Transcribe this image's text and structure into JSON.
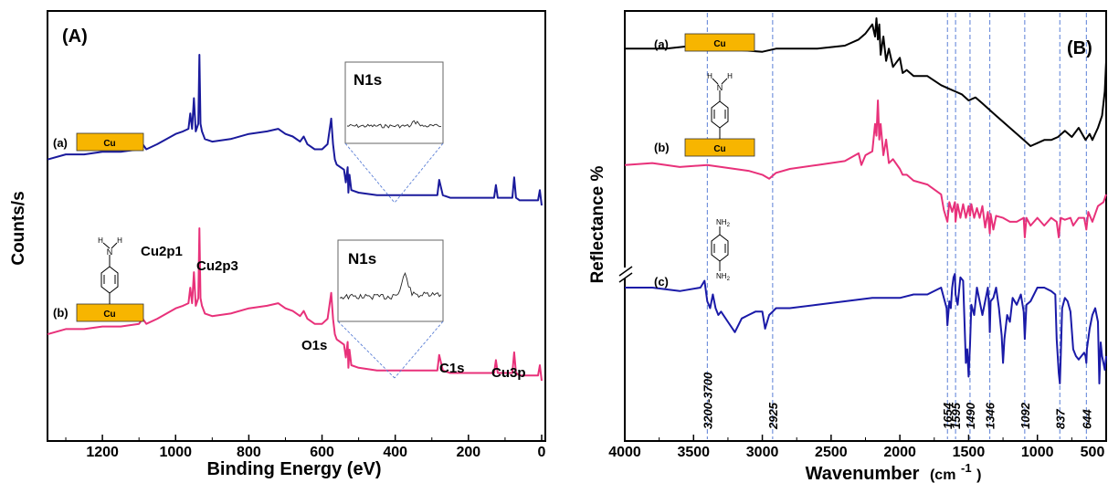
{
  "colors": {
    "a": "#1a1a9c",
    "b": "#e8317a",
    "c": "#1a1aa8",
    "black": "#000000",
    "substrate": "#f7b500",
    "guide": "#5b7fd6"
  },
  "chart_data": [
    {
      "type": "line",
      "panel": "(A)",
      "xlabel": "Binding Energy (eV)",
      "ylabel": "Counts/s",
      "xlim": [
        1350,
        -10
      ],
      "xticks": [
        1200,
        1000,
        800,
        600,
        400,
        200,
        0
      ],
      "yticks_shown": false,
      "series": [
        {
          "name": "(a)",
          "substrate_label": "Cu",
          "color": "#1a1a9c",
          "x": [
            1350,
            1300,
            1250,
            1200,
            1150,
            1100,
            1090,
            1080,
            1050,
            1000,
            980,
            965,
            960,
            955,
            950,
            945,
            938,
            935,
            932,
            928,
            920,
            900,
            850,
            800,
            750,
            720,
            700,
            680,
            660,
            650,
            640,
            620,
            600,
            585,
            575,
            570,
            565,
            560,
            540,
            535,
            530,
            528,
            525,
            520,
            500,
            450,
            400,
            350,
            300,
            285,
            280,
            270,
            250,
            200,
            150,
            130,
            125,
            120,
            100,
            80,
            75,
            70,
            60,
            50,
            40,
            20,
            10,
            5,
            0
          ],
          "y": [
            0.56,
            0.58,
            0.58,
            0.59,
            0.59,
            0.6,
            0.62,
            0.6,
            0.62,
            0.66,
            0.67,
            0.68,
            0.74,
            0.68,
            0.8,
            0.67,
            0.7,
            0.97,
            0.7,
            0.67,
            0.64,
            0.63,
            0.64,
            0.66,
            0.67,
            0.68,
            0.66,
            0.65,
            0.63,
            0.65,
            0.62,
            0.6,
            0.6,
            0.62,
            0.72,
            0.62,
            0.56,
            0.54,
            0.52,
            0.47,
            0.53,
            0.43,
            0.5,
            0.44,
            0.43,
            0.42,
            0.42,
            0.42,
            0.42,
            0.42,
            0.48,
            0.42,
            0.41,
            0.41,
            0.41,
            0.41,
            0.46,
            0.41,
            0.41,
            0.41,
            0.49,
            0.41,
            0.4,
            0.4,
            0.4,
            0.4,
            0.4,
            0.44,
            0.38
          ]
        },
        {
          "name": "(b)",
          "substrate_label": "Cu",
          "color": "#e8317a",
          "x": [
            1350,
            1300,
            1250,
            1200,
            1150,
            1100,
            1090,
            1080,
            1050,
            1000,
            980,
            965,
            960,
            955,
            950,
            945,
            938,
            935,
            932,
            928,
            920,
            900,
            850,
            800,
            750,
            720,
            700,
            680,
            660,
            650,
            640,
            620,
            600,
            585,
            575,
            570,
            565,
            560,
            540,
            535,
            530,
            528,
            525,
            520,
            500,
            450,
            400,
            350,
            300,
            285,
            280,
            270,
            250,
            200,
            150,
            130,
            125,
            120,
            100,
            80,
            75,
            70,
            60,
            50,
            40,
            20,
            10,
            5,
            0
          ],
          "y": [
            0.56,
            0.58,
            0.58,
            0.59,
            0.59,
            0.6,
            0.62,
            0.6,
            0.62,
            0.66,
            0.67,
            0.68,
            0.74,
            0.68,
            0.8,
            0.67,
            0.7,
            0.97,
            0.7,
            0.67,
            0.64,
            0.63,
            0.64,
            0.66,
            0.67,
            0.68,
            0.66,
            0.65,
            0.63,
            0.65,
            0.62,
            0.6,
            0.6,
            0.62,
            0.72,
            0.62,
            0.56,
            0.54,
            0.52,
            0.47,
            0.53,
            0.43,
            0.5,
            0.44,
            0.43,
            0.42,
            0.42,
            0.42,
            0.42,
            0.42,
            0.48,
            0.42,
            0.41,
            0.41,
            0.41,
            0.41,
            0.46,
            0.41,
            0.41,
            0.41,
            0.49,
            0.41,
            0.4,
            0.4,
            0.4,
            0.4,
            0.4,
            0.44,
            0.38
          ]
        }
      ],
      "annotations": [
        "Cu2p1",
        "Cu2p3",
        "O1s",
        "C1s",
        "Cu3p"
      ],
      "insets": [
        {
          "title": "N1s",
          "trace": "flat"
        },
        {
          "title": "N1s",
          "trace": "peak"
        }
      ]
    },
    {
      "type": "line",
      "panel": "(B)",
      "xlabel": "Wavenumber (cm-1)",
      "xlabel_main": "Wavenumber",
      "xlabel_unit_open": "(cm",
      "xlabel_unit_sup": "-1",
      "xlabel_unit_close": ")",
      "ylabel": "Reflectance %",
      "xlim": [
        4000,
        500
      ],
      "xticks": [
        4000,
        3500,
        3000,
        2500,
        2000,
        1500,
        1000,
        500
      ],
      "xtick_labels": [
        "4000",
        "3500",
        "3000",
        "2500",
        "2000",
        "1500",
        "1000",
        "500"
      ],
      "yticks_shown": false,
      "series": [
        {
          "name": "(a)",
          "substrate_label": "Cu",
          "color": "#000000",
          "x": [
            4000,
            3700,
            3500,
            3400,
            3300,
            3000,
            2900,
            2800,
            2600,
            2400,
            2300,
            2250,
            2200,
            2180,
            2170,
            2160,
            2150,
            2140,
            2120,
            2100,
            2080,
            2050,
            2000,
            1980,
            1950,
            1900,
            1800,
            1700,
            1650,
            1600,
            1550,
            1500,
            1450,
            1400,
            1300,
            1200,
            1100,
            1050,
            1000,
            950,
            900,
            850,
            800,
            750,
            700,
            650,
            620,
            600,
            560,
            530,
            510,
            500
          ],
          "y": [
            0.82,
            0.82,
            0.83,
            0.82,
            0.82,
            0.81,
            0.82,
            0.82,
            0.82,
            0.83,
            0.85,
            0.87,
            0.9,
            0.86,
            0.92,
            0.85,
            0.9,
            0.8,
            0.86,
            0.78,
            0.82,
            0.76,
            0.79,
            0.74,
            0.75,
            0.73,
            0.73,
            0.7,
            0.69,
            0.68,
            0.67,
            0.65,
            0.66,
            0.64,
            0.6,
            0.56,
            0.52,
            0.5,
            0.51,
            0.52,
            0.52,
            0.53,
            0.55,
            0.53,
            0.56,
            0.52,
            0.54,
            0.52,
            0.56,
            0.6,
            0.68,
            0.78
          ]
        },
        {
          "name": "(b)",
          "substrate_label": "Cu",
          "color": "#e8317a",
          "x": [
            4000,
            3800,
            3600,
            3400,
            3200,
            3100,
            3000,
            2950,
            2900,
            2800,
            2600,
            2400,
            2300,
            2280,
            2250,
            2200,
            2180,
            2170,
            2160,
            2150,
            2140,
            2120,
            2100,
            2080,
            2050,
            2000,
            1980,
            1950,
            1900,
            1800,
            1700,
            1680,
            1654,
            1640,
            1620,
            1600,
            1595,
            1580,
            1560,
            1540,
            1520,
            1500,
            1490,
            1480,
            1460,
            1440,
            1420,
            1400,
            1380,
            1360,
            1346,
            1340,
            1320,
            1300,
            1250,
            1200,
            1150,
            1100,
            1092,
            1080,
            1050,
            1000,
            950,
            900,
            860,
            845,
            837,
            830,
            800,
            760,
            740,
            700,
            660,
            644,
            630,
            600,
            560,
            520,
            500
          ],
          "y": [
            0.57,
            0.58,
            0.56,
            0.57,
            0.55,
            0.54,
            0.52,
            0.5,
            0.53,
            0.55,
            0.57,
            0.59,
            0.63,
            0.57,
            0.62,
            0.64,
            0.78,
            0.72,
            0.9,
            0.7,
            0.78,
            0.62,
            0.7,
            0.58,
            0.6,
            0.55,
            0.52,
            0.52,
            0.49,
            0.47,
            0.42,
            0.34,
            0.28,
            0.38,
            0.33,
            0.38,
            0.28,
            0.37,
            0.3,
            0.37,
            0.3,
            0.36,
            0.31,
            0.37,
            0.3,
            0.35,
            0.3,
            0.36,
            0.25,
            0.33,
            0.22,
            0.32,
            0.24,
            0.31,
            0.3,
            0.28,
            0.28,
            0.3,
            0.2,
            0.3,
            0.26,
            0.3,
            0.26,
            0.3,
            0.28,
            0.2,
            0.26,
            0.3,
            0.29,
            0.3,
            0.26,
            0.3,
            0.3,
            0.24,
            0.33,
            0.28,
            0.36,
            0.38,
            0.42
          ]
        },
        {
          "name": "(c)",
          "substrate_label": "",
          "color": "#1a1aa8",
          "x": [
            4000,
            3800,
            3600,
            3450,
            3420,
            3400,
            3380,
            3360,
            3340,
            3320,
            3300,
            3250,
            3200,
            3150,
            3100,
            3050,
            3000,
            2980,
            2950,
            2925,
            2900,
            2800,
            2600,
            2400,
            2200,
            2000,
            1900,
            1800,
            1700,
            1660,
            1654,
            1640,
            1630,
            1620,
            1610,
            1600,
            1595,
            1580,
            1560,
            1540,
            1520,
            1510,
            1500,
            1490,
            1480,
            1460,
            1440,
            1420,
            1400,
            1380,
            1360,
            1350,
            1346,
            1340,
            1320,
            1300,
            1280,
            1260,
            1250,
            1240,
            1220,
            1200,
            1180,
            1150,
            1120,
            1100,
            1092,
            1080,
            1050,
            1000,
            950,
            900,
            870,
            860,
            845,
            837,
            830,
            820,
            800,
            780,
            760,
            740,
            720,
            700,
            680,
            660,
            650,
            644,
            640,
            620,
            600,
            580,
            560,
            550,
            540,
            530,
            520,
            510,
            500
          ],
          "y": [
            0.4,
            0.4,
            0.39,
            0.4,
            0.42,
            0.36,
            0.34,
            0.38,
            0.34,
            0.32,
            0.33,
            0.3,
            0.27,
            0.31,
            0.32,
            0.33,
            0.33,
            0.28,
            0.32,
            0.33,
            0.34,
            0.34,
            0.35,
            0.36,
            0.37,
            0.37,
            0.38,
            0.38,
            0.4,
            0.34,
            0.29,
            0.36,
            0.34,
            0.4,
            0.43,
            0.44,
            0.38,
            0.35,
            0.43,
            0.42,
            0.18,
            0.22,
            0.14,
            0.23,
            0.35,
            0.32,
            0.4,
            0.36,
            0.32,
            0.36,
            0.4,
            0.33,
            0.27,
            0.36,
            0.37,
            0.4,
            0.34,
            0.26,
            0.18,
            0.25,
            0.32,
            0.3,
            0.37,
            0.35,
            0.38,
            0.33,
            0.25,
            0.35,
            0.36,
            0.4,
            0.4,
            0.39,
            0.38,
            0.25,
            0.15,
            0.12,
            0.2,
            0.34,
            0.37,
            0.36,
            0.33,
            0.22,
            0.2,
            0.19,
            0.2,
            0.21,
            0.2,
            0.18,
            0.22,
            0.28,
            0.32,
            0.34,
            0.3,
            0.12,
            0.24,
            0.2,
            0.18,
            0.16,
            0.2
          ]
        }
      ],
      "guide_lines": [
        3400,
        2925,
        1654,
        1595,
        1490,
        1346,
        1092,
        837,
        644
      ],
      "peak_labels": [
        "3200-3700",
        "2925",
        "1654",
        "1595",
        "1490",
        "1346",
        "1092",
        "837",
        "644"
      ],
      "label_positions_data": [
        3400,
        2925,
        1654,
        1595,
        1490,
        1346,
        1092,
        837,
        644
      ]
    }
  ],
  "panelA": {
    "title": "(A)",
    "xlabel": "Binding Energy (eV)",
    "ylabel": "Counts/s",
    "label_a": "(a)",
    "label_b": "(b)",
    "cu_a": "Cu",
    "cu_b": "Cu",
    "inset1": "N1s",
    "inset2": "N1s",
    "ann_cu2p1": "Cu2p1",
    "ann_cu2p3": "Cu2p3",
    "ann_o1s": "O1s",
    "ann_c1s": "C1s",
    "ann_cu3p": "Cu3p",
    "mol_h1": "H",
    "mol_n": "N",
    "mol_h2": "H"
  },
  "panelB": {
    "title": "(B)",
    "ylabel": "Reflectance %",
    "label_a": "(a)",
    "label_b": "(b)",
    "label_c": "(c)",
    "cu_a": "Cu",
    "cu_b": "Cu",
    "mol_h1": "H",
    "mol_n": "N",
    "mol_h2": "H",
    "nh2_top": "NH",
    "nh2_bot": "NH",
    "sub2": "2"
  }
}
